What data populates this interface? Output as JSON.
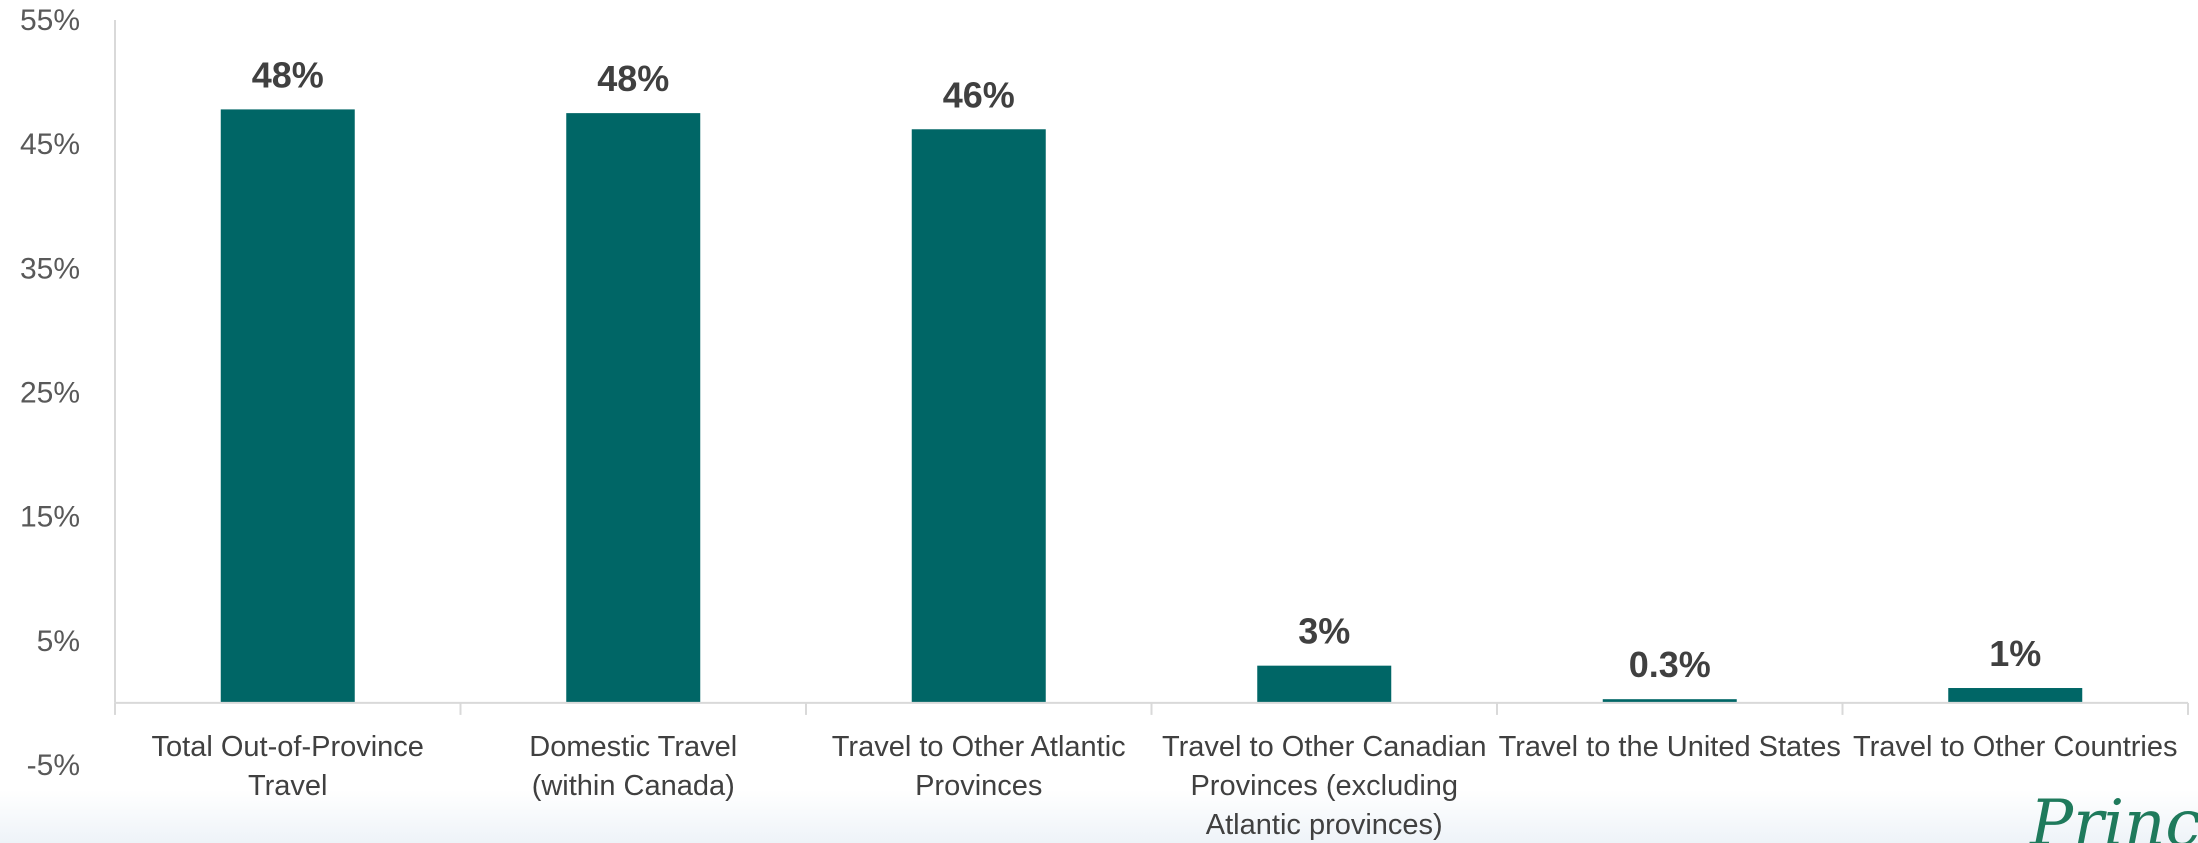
{
  "chart_data": {
    "type": "bar",
    "categories": [
      [
        "Total Out-of-Province",
        "Travel"
      ],
      [
        "Domestic Travel",
        "(within Canada)"
      ],
      [
        "Travel to Other Atlantic",
        "Provinces"
      ],
      [
        "Travel to Other Canadian",
        "Provinces (excluding",
        "Atlantic provinces)"
      ],
      [
        "Travel to the United States"
      ],
      [
        "Travel to Other Countries"
      ]
    ],
    "values": [
      47.8,
      47.5,
      46.2,
      3.0,
      0.3,
      1.2
    ],
    "data_labels": [
      "48%",
      "48%",
      "46%",
      "3%",
      "0.3%",
      "1%"
    ],
    "yticks": [
      -5,
      5,
      15,
      25,
      35,
      45,
      55
    ],
    "ytick_labels": [
      "-5%",
      "5%",
      "15%",
      "25%",
      "35%",
      "45%",
      "55%"
    ],
    "ylim": [
      -5,
      55
    ],
    "grid": false,
    "title": "",
    "xlabel": "",
    "ylabel": "",
    "colors": {
      "bar": "#006666",
      "axis": "#d9d9d9"
    }
  },
  "logo_text": "Princ"
}
